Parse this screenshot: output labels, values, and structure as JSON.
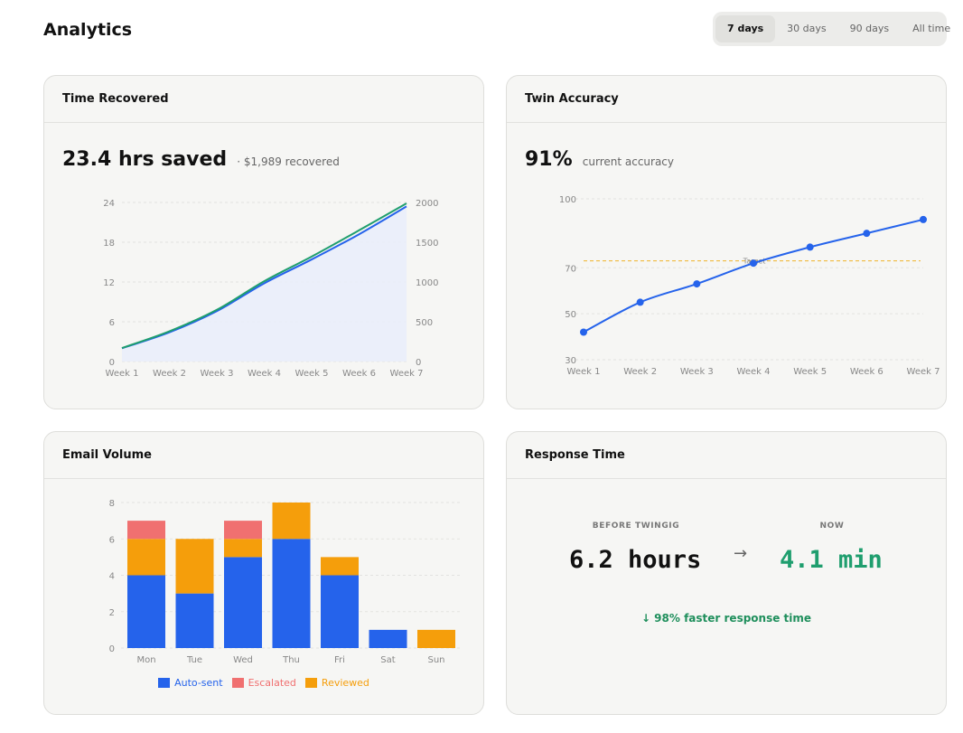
{
  "page": {
    "title": "Analytics"
  },
  "range_tabs": [
    {
      "label": "7 days",
      "active": true
    },
    {
      "label": "30 days",
      "active": false
    },
    {
      "label": "90 days",
      "active": false
    },
    {
      "label": "All time",
      "active": false
    }
  ],
  "time_recovered": {
    "title": "Time Recovered",
    "metric": "23.4 hrs saved",
    "sub": "· $1,989 recovered"
  },
  "twin_accuracy": {
    "title": "Twin Accuracy",
    "metric": "91%",
    "sub": "current accuracy"
  },
  "email_volume": {
    "title": "Email Volume"
  },
  "response_time": {
    "title": "Response Time",
    "before_label": "BEFORE TWINGIG",
    "now_label": "NOW",
    "before_value": "6.2 hours",
    "arrow": "→",
    "now_value": "4.1 min",
    "improvement": "↓ 98% faster response time"
  },
  "chart_data": [
    {
      "type": "line",
      "name": "time-recovered",
      "x": [
        "Week 1",
        "Week 2",
        "Week 3",
        "Week 4",
        "Week 5",
        "Week 6",
        "Week 7"
      ],
      "left_axis": {
        "ylim": [
          0,
          24
        ],
        "ticks": [
          0,
          6,
          12,
          18,
          24
        ]
      },
      "right_axis": {
        "ylim": [
          0,
          2000
        ],
        "ticks": [
          0,
          500,
          1000,
          1500,
          2000
        ]
      },
      "series": [
        {
          "axis": "left",
          "color": "#2563eb",
          "values": [
            2,
            4.4,
            7.6,
            11.8,
            15.4,
            19.2,
            23.4
          ],
          "area": true
        },
        {
          "axis": "right",
          "color": "#1f9e6e",
          "values": [
            170,
            380,
            650,
            1010,
            1320,
            1650,
            1989
          ]
        }
      ],
      "grid": true
    },
    {
      "type": "line",
      "name": "twin-accuracy",
      "x": [
        "Week 1",
        "Week 2",
        "Week 3",
        "Week 4",
        "Week 5",
        "Week 6",
        "Week 7"
      ],
      "ylim": [
        30,
        100
      ],
      "yticks": [
        30,
        50,
        70,
        100
      ],
      "series": [
        {
          "color": "#2563eb",
          "values": [
            42,
            55,
            63,
            72,
            79,
            85,
            91
          ]
        }
      ],
      "target": {
        "label": "Target",
        "value": 73,
        "color": "#f0b429"
      },
      "grid": true
    },
    {
      "type": "bar",
      "name": "email-volume",
      "stacked": true,
      "categories": [
        "Mon",
        "Tue",
        "Wed",
        "Thu",
        "Fri",
        "Sat",
        "Sun"
      ],
      "ylim": [
        0,
        8
      ],
      "yticks": [
        0,
        2,
        4,
        6,
        8
      ],
      "series": [
        {
          "name": "Auto-sent",
          "color": "#2563eb",
          "values": [
            4,
            3,
            5,
            6,
            4,
            1,
            0
          ]
        },
        {
          "name": "Reviewed",
          "color": "#f59e0b",
          "values": [
            2,
            3,
            1,
            2,
            1,
            0,
            1
          ]
        },
        {
          "name": "Escalated",
          "color": "#f07070",
          "values": [
            1,
            0,
            1,
            0,
            0,
            0,
            0
          ]
        }
      ],
      "legend": [
        {
          "name": "Auto-sent",
          "color": "#2563eb"
        },
        {
          "name": "Escalated",
          "color": "#f07070"
        },
        {
          "name": "Reviewed",
          "color": "#f59e0b"
        }
      ],
      "legend_position": "bottom",
      "grid": true
    }
  ]
}
